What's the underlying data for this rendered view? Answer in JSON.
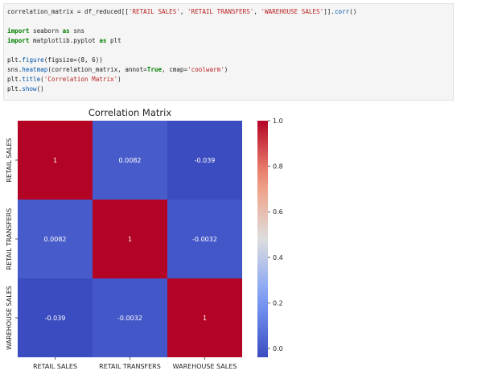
{
  "code_cell": {
    "lines": [
      [
        {
          "t": "correlation_matrix = df_reduced[[",
          "c": "plain"
        },
        {
          "t": "'RETAIL SALES'",
          "c": "str"
        },
        {
          "t": ", ",
          "c": "plain"
        },
        {
          "t": "'RETAIL TRANSFERS'",
          "c": "str"
        },
        {
          "t": ", ",
          "c": "plain"
        },
        {
          "t": "'WAREHOUSE SALES'",
          "c": "str"
        },
        {
          "t": "]].",
          "c": "plain"
        },
        {
          "t": "corr",
          "c": "fn"
        },
        {
          "t": "()",
          "c": "plain"
        }
      ],
      [],
      [
        {
          "t": "import",
          "c": "kw"
        },
        {
          "t": " seaborn ",
          "c": "plain"
        },
        {
          "t": "as",
          "c": "kw"
        },
        {
          "t": " sns",
          "c": "plain"
        }
      ],
      [
        {
          "t": "import",
          "c": "kw"
        },
        {
          "t": " matplotlib.pyplot ",
          "c": "plain"
        },
        {
          "t": "as",
          "c": "kw"
        },
        {
          "t": " plt",
          "c": "plain"
        }
      ],
      [],
      [
        {
          "t": "plt.",
          "c": "plain"
        },
        {
          "t": "figure",
          "c": "fn"
        },
        {
          "t": "(figsize=(8, 6))",
          "c": "plain"
        }
      ],
      [
        {
          "t": "sns.",
          "c": "plain"
        },
        {
          "t": "heatmap",
          "c": "fn"
        },
        {
          "t": "(correlation_matrix, annot=",
          "c": "plain"
        },
        {
          "t": "True",
          "c": "kw"
        },
        {
          "t": ", cmap=",
          "c": "plain"
        },
        {
          "t": "'coolwarm'",
          "c": "str"
        },
        {
          "t": ")",
          "c": "plain"
        }
      ],
      [
        {
          "t": "plt.",
          "c": "plain"
        },
        {
          "t": "title",
          "c": "fn"
        },
        {
          "t": "(",
          "c": "plain"
        },
        {
          "t": "'Correlation Matrix'",
          "c": "str"
        },
        {
          "t": ")",
          "c": "plain"
        }
      ],
      [
        {
          "t": "plt.",
          "c": "plain"
        },
        {
          "t": "show",
          "c": "fn"
        },
        {
          "t": "()",
          "c": "plain"
        }
      ]
    ]
  },
  "chart_data": {
    "type": "heatmap",
    "title": "Correlation Matrix",
    "x_labels": [
      "RETAIL SALES",
      "RETAIL TRANSFERS",
      "WAREHOUSE SALES"
    ],
    "y_labels": [
      "RETAIL SALES",
      "RETAIL TRANSFERS",
      "WAREHOUSE SALES"
    ],
    "values": [
      [
        1,
        0.0082,
        -0.039
      ],
      [
        0.0082,
        1,
        -0.0032
      ],
      [
        -0.039,
        -0.0032,
        1
      ]
    ],
    "annotations": [
      [
        "1",
        "0.0082",
        "-0.039"
      ],
      [
        "0.0082",
        "1",
        "-0.0032"
      ],
      [
        "-0.039",
        "-0.0032",
        "1"
      ]
    ],
    "colormap": "coolwarm",
    "colorbar": {
      "range": [
        -0.039,
        1.0
      ],
      "ticks": [
        0.0,
        0.2,
        0.4,
        0.6,
        0.8,
        1.0
      ],
      "tick_labels": [
        "0.0",
        "0.2",
        "0.4",
        "0.6",
        "0.8",
        "1.0"
      ]
    }
  }
}
